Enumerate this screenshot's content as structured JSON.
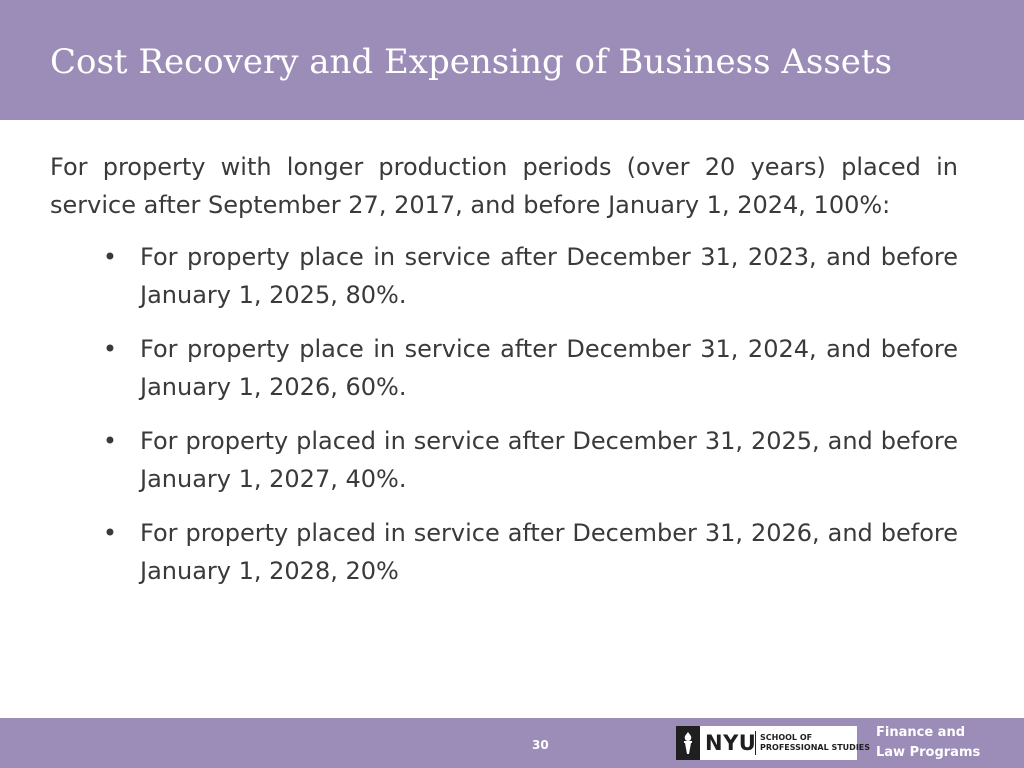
{
  "slide": {
    "title": "Cost Recovery and Expensing of Business Assets",
    "intro": "For property with longer production periods (over 20 years) placed in service after September 27, 2017, and before January 1, 2024, 100%:",
    "bullet_symbol": "•",
    "bullets": [
      "For property place in service after December 31, 2023, and before January 1, 2025, 80%.",
      "For property place in service after December 31, 2024, and before January 1, 2026, 60%.",
      "For property placed in service after December 31, 2025, and before January 1, 2027, 40%.",
      "For property placed in service after December 31, 2026, and before January 1, 2028, 20%"
    ]
  },
  "footer": {
    "page_number": "30",
    "logo": {
      "name": "NYU",
      "school_line1": "SCHOOL OF",
      "school_line2": "PROFESSIONAL STUDIES",
      "icon": "torch-icon"
    },
    "program_line1": "Finance and",
    "program_line2": "Law Programs"
  },
  "colors": {
    "header_background": "#9b8db8",
    "footer_background": "#9b8db8",
    "title_text": "#ffffff",
    "body_text": "#3a3a3a"
  }
}
